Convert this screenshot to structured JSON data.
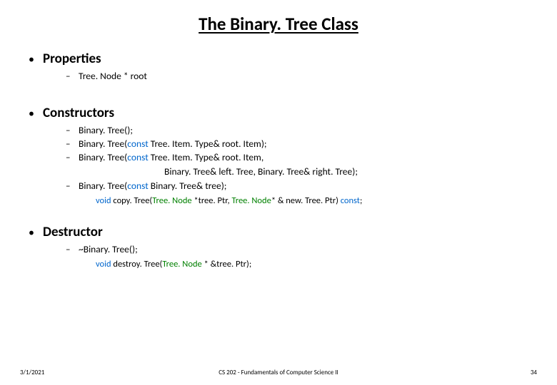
{
  "title": "The Binary. Tree Class",
  "sections": {
    "properties": {
      "heading": "Properties",
      "items": [
        "Tree. Node * root"
      ]
    },
    "constructors": {
      "heading": "Constructors",
      "item1_a": "Binary. Tree();",
      "item2_a": "Binary. Tree(",
      "item2_b": "const",
      "item2_c": " Tree. Item. Type& root. Item);",
      "item3_a": "Binary. Tree(",
      "item3_b": "const",
      "item3_c": " Tree. Item. Type& root. Item,",
      "item3_cont": "Binary. Tree& left. Tree, Binary. Tree& right. Tree);",
      "item4_a": "Binary. Tree(",
      "item4_b": "const",
      "item4_c": " Binary. Tree& tree);",
      "helper_a": "void",
      "helper_b": " copy. Tree(",
      "helper_c": "Tree. Node",
      "helper_d": " *tree. Ptr, ",
      "helper_e": "Tree. Node",
      "helper_f": "* & new. Tree. Ptr) ",
      "helper_g": "const",
      "helper_h": ";"
    },
    "destructor": {
      "heading": "Destructor",
      "item1": "~Binary. Tree();",
      "helper_a": "void",
      "helper_b": " destroy. Tree(",
      "helper_c": "Tree. Node",
      "helper_d": " * &tree. Ptr);"
    }
  },
  "footer": {
    "date": "3/1/2021",
    "course": "CS 202 - Fundamentals of Computer Science II",
    "page": "34"
  }
}
